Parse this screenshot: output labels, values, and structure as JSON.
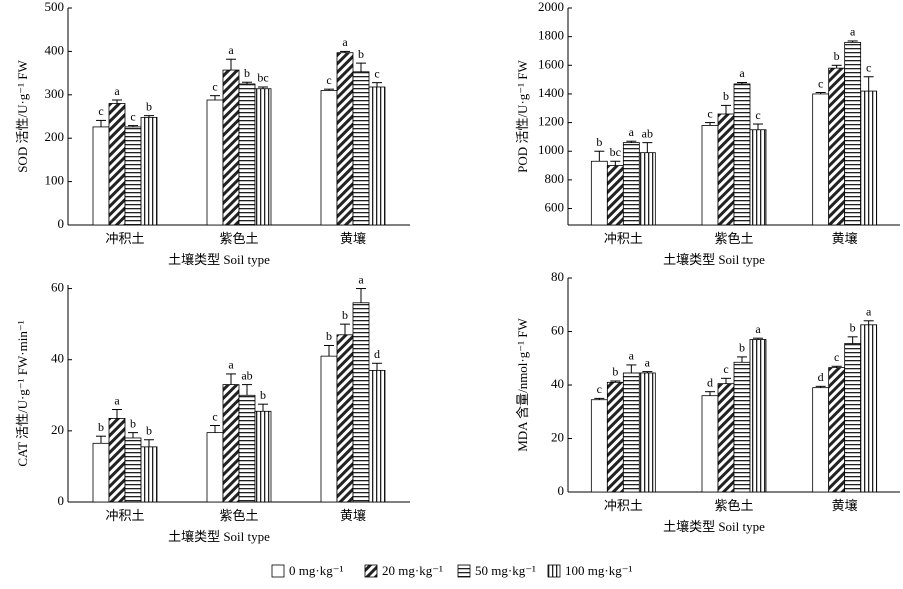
{
  "legend": [
    {
      "name": "0 mg·kg⁻¹",
      "pattern": "none"
    },
    {
      "name": "20 mg·kg⁻¹",
      "pattern": "diagonal"
    },
    {
      "name": "50 mg·kg⁻¹",
      "pattern": "horizontal"
    },
    {
      "name": "100 mg·kg⁻¹",
      "pattern": "vertical"
    }
  ],
  "chart_data": [
    {
      "type": "bar",
      "ylabel": "SOD 活性/U·g⁻¹ FW",
      "xlabel": "土壤类型 Soil type",
      "categories": [
        "冲积土",
        "紫色土",
        "黄壤"
      ],
      "ylim": [
        0,
        500
      ],
      "yticks": [
        0,
        100,
        200,
        300,
        400,
        500
      ],
      "series": [
        {
          "values": [
            226,
            288,
            310
          ],
          "errors": [
            15,
            10,
            3
          ],
          "annotations": [
            "c",
            "c",
            "c"
          ]
        },
        {
          "values": [
            280,
            357,
            397
          ],
          "errors": [
            8,
            25,
            3
          ],
          "annotations": [
            "a",
            "a",
            "a"
          ]
        },
        {
          "values": [
            226,
            325,
            353
          ],
          "errors": [
            3,
            4,
            20
          ],
          "annotations": [
            "c",
            "b",
            "b"
          ]
        },
        {
          "values": [
            248,
            314,
            318
          ],
          "errors": [
            4,
            4,
            10
          ],
          "annotations": [
            "b",
            "bc",
            "c"
          ]
        }
      ]
    },
    {
      "type": "bar",
      "ylabel": "POD 活性/U·g⁻¹ FW",
      "xlabel": "土壤类型 Soil type",
      "categories": [
        "冲积土",
        "紫色土",
        "黄壤"
      ],
      "ylim": [
        485,
        2000
      ],
      "yticks": [
        600,
        800,
        1000,
        1200,
        1400,
        1600,
        1800,
        2000
      ],
      "series": [
        {
          "values": [
            930,
            1180,
            1400
          ],
          "errors": [
            70,
            20,
            10
          ],
          "annotations": [
            "b",
            "c",
            "c"
          ]
        },
        {
          "values": [
            900,
            1260,
            1580
          ],
          "errors": [
            30,
            60,
            20
          ],
          "annotations": [
            "bc",
            "b",
            "b"
          ]
        },
        {
          "values": [
            1060,
            1470,
            1760
          ],
          "errors": [
            10,
            10,
            10
          ],
          "annotations": [
            "a",
            "a",
            "a"
          ]
        },
        {
          "values": [
            990,
            1150,
            1420
          ],
          "errors": [
            70,
            40,
            100
          ],
          "annotations": [
            "ab",
            "c",
            "c"
          ]
        }
      ]
    },
    {
      "type": "bar",
      "ylabel": "CAT 活性/U·g⁻¹ FW·min⁻¹",
      "xlabel": "土壤类型 Soil type",
      "categories": [
        "冲积土",
        "紫色土",
        "黄壤"
      ],
      "ylim": [
        0,
        61
      ],
      "yticks": [
        0,
        20,
        40,
        60
      ],
      "series": [
        {
          "values": [
            16.5,
            19.5,
            41
          ],
          "errors": [
            2,
            2,
            3
          ],
          "annotations": [
            "b",
            "c",
            "b"
          ]
        },
        {
          "values": [
            23.5,
            33,
            47
          ],
          "errors": [
            2.5,
            3,
            3
          ],
          "annotations": [
            "a",
            "a",
            "b"
          ]
        },
        {
          "values": [
            18,
            30,
            56
          ],
          "errors": [
            1.5,
            3,
            4
          ],
          "annotations": [
            "b",
            "ab",
            "a"
          ]
        },
        {
          "values": [
            15.5,
            25.5,
            37
          ],
          "errors": [
            2,
            2,
            2
          ],
          "annotations": [
            "b",
            "b",
            "d"
          ]
        }
      ]
    },
    {
      "type": "bar",
      "ylabel": "MDA 含量/nmol·g⁻¹ FW",
      "xlabel": "土壤类型 Soil type",
      "categories": [
        "冲积土",
        "紫色土",
        "黄壤"
      ],
      "ylim": [
        0,
        80
      ],
      "yticks": [
        0,
        20,
        40,
        60,
        80
      ],
      "series": [
        {
          "values": [
            34.5,
            36,
            39
          ],
          "errors": [
            0.5,
            1.5,
            0.5
          ],
          "annotations": [
            "c",
            "d",
            "d"
          ]
        },
        {
          "values": [
            41,
            40.5,
            46.5
          ],
          "errors": [
            0.5,
            2,
            0.5
          ],
          "annotations": [
            "b",
            "c",
            "c"
          ]
        },
        {
          "values": [
            44.5,
            48.5,
            55.5
          ],
          "errors": [
            3,
            2,
            2.5
          ],
          "annotations": [
            "a",
            "b",
            "b"
          ]
        },
        {
          "values": [
            44.5,
            57,
            62.5
          ],
          "errors": [
            0.5,
            0.5,
            1.5
          ],
          "annotations": [
            "a",
            "a",
            "a"
          ]
        }
      ]
    }
  ]
}
